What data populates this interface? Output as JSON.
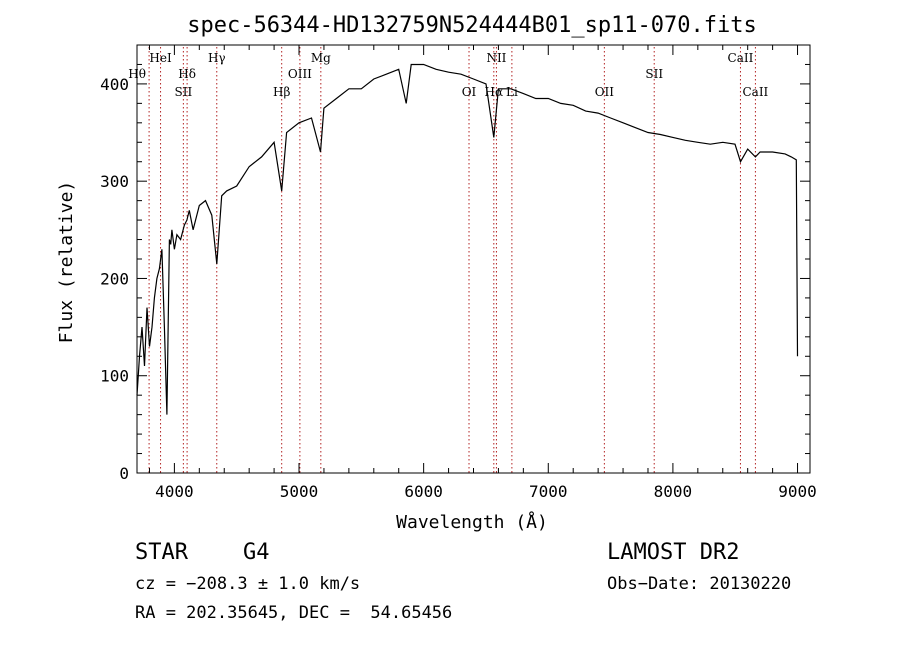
{
  "chart_data": {
    "type": "line",
    "title": "spec-56344-HD132759N524444B01_sp11-070.fits",
    "xlabel": "Wavelength (Å)",
    "ylabel": "Flux (relative)",
    "xlim": [
      3700,
      9100
    ],
    "ylim": [
      0,
      440
    ],
    "xticks": [
      4000,
      5000,
      6000,
      7000,
      8000,
      9000
    ],
    "yticks": [
      0,
      100,
      200,
      300,
      400
    ],
    "series": [
      {
        "name": "flux",
        "x": [
          3700,
          3720,
          3740,
          3760,
          3780,
          3800,
          3820,
          3840,
          3860,
          3880,
          3900,
          3920,
          3940,
          3960,
          3970,
          3980,
          4000,
          4020,
          4050,
          4080,
          4100,
          4120,
          4150,
          4200,
          4250,
          4300,
          4340,
          4380,
          4420,
          4500,
          4600,
          4700,
          4800,
          4861,
          4900,
          5000,
          5100,
          5172,
          5200,
          5300,
          5400,
          5500,
          5600,
          5700,
          5800,
          5860,
          5900,
          6000,
          6100,
          6200,
          6300,
          6400,
          6500,
          6563,
          6600,
          6700,
          6800,
          6900,
          7000,
          7100,
          7200,
          7300,
          7400,
          7500,
          7600,
          7700,
          7800,
          7900,
          8000,
          8100,
          8200,
          8300,
          8400,
          8498,
          8542,
          8600,
          8662,
          8700,
          8800,
          8900,
          8950,
          8990,
          9000
        ],
        "y": [
          80,
          120,
          150,
          110,
          170,
          130,
          150,
          180,
          200,
          210,
          230,
          150,
          60,
          240,
          235,
          250,
          230,
          245,
          240,
          255,
          260,
          270,
          250,
          275,
          280,
          265,
          215,
          285,
          290,
          295,
          315,
          325,
          340,
          290,
          350,
          360,
          365,
          330,
          375,
          385,
          395,
          395,
          405,
          410,
          415,
          380,
          420,
          420,
          415,
          412,
          410,
          405,
          400,
          345,
          395,
          395,
          390,
          385,
          385,
          380,
          378,
          372,
          370,
          365,
          360,
          355,
          350,
          348,
          345,
          342,
          340,
          338,
          340,
          338,
          320,
          333,
          325,
          330,
          330,
          328,
          325,
          322,
          120
        ]
      }
    ],
    "line_markers": [
      {
        "label": "Hθ",
        "wavelength": 3797,
        "row": "bottom-left"
      },
      {
        "label": "HeI",
        "wavelength": 3889,
        "row": "top"
      },
      {
        "label": "Hδ",
        "wavelength": 4102,
        "row": "middle"
      },
      {
        "label": "SII",
        "wavelength": 4072,
        "row": "low"
      },
      {
        "label": "Hγ",
        "wavelength": 4340,
        "row": "top"
      },
      {
        "label": "Hβ",
        "wavelength": 4861,
        "row": "low"
      },
      {
        "label": "OIII",
        "wavelength": 5007,
        "row": "middle"
      },
      {
        "label": "Mg",
        "wavelength": 5175,
        "row": "top"
      },
      {
        "label": "OI",
        "wavelength": 6364,
        "row": "low"
      },
      {
        "label": "NII",
        "wavelength": 6584,
        "row": "top"
      },
      {
        "label": "Hα",
        "wavelength": 6563,
        "row": "low"
      },
      {
        "label": "Li",
        "wavelength": 6708,
        "row": "low"
      },
      {
        "label": "OII",
        "wavelength": 7450,
        "row": "low"
      },
      {
        "label": "SII",
        "wavelength": 7850,
        "row": "middle"
      },
      {
        "label": "CaII",
        "wavelength": 8542,
        "row": "top"
      },
      {
        "label": "CaII",
        "wavelength": 8662,
        "row": "low"
      }
    ],
    "line_color": "#000000",
    "marker_color": "#b22222"
  },
  "info": {
    "class": "STAR",
    "subclass": "G4",
    "survey": "LAMOST DR2",
    "redshift": "cz = −208.3 ± 1.0 km/s",
    "obs_date": "Obs−Date: 20130220",
    "coords": "RA = 202.35645, DEC =  54.65456"
  }
}
